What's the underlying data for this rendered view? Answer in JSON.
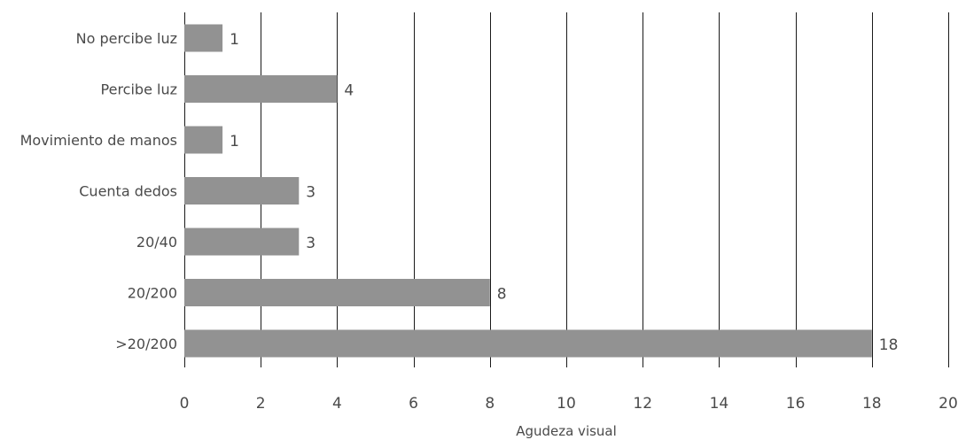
{
  "chart_data": {
    "type": "bar",
    "orientation": "horizontal",
    "categories": [
      "No percibe luz",
      "Percibe luz",
      "Movimiento de manos",
      "Cuenta dedos",
      "20/40",
      "20/200",
      ">20/200"
    ],
    "values": [
      1,
      4,
      1,
      3,
      3,
      8,
      18
    ],
    "xlabel": "Agudeza visual",
    "ylabel": "",
    "title": "",
    "xlim": [
      0,
      20
    ],
    "x_ticks": [
      0,
      2,
      4,
      6,
      8,
      10,
      12,
      14,
      16,
      18,
      20
    ],
    "grid": "vertical",
    "legend": "none",
    "bar_color": "#929292"
  }
}
